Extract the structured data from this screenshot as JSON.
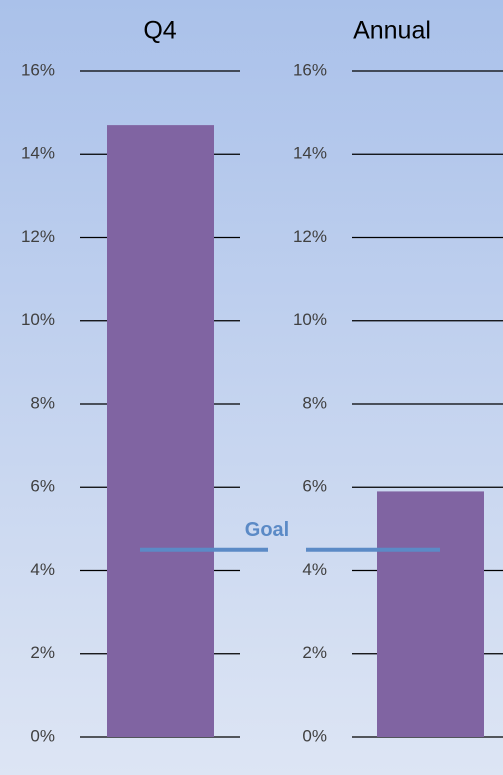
{
  "chart_data": [
    {
      "type": "bar",
      "title": "Q4",
      "values": [
        14.7
      ],
      "color": "#8064a2",
      "ylim": [
        0,
        16
      ],
      "yticks": [
        {
          "value": 0,
          "label": "0%"
        },
        {
          "value": 2,
          "label": "2%"
        },
        {
          "value": 4,
          "label": "4%"
        },
        {
          "value": 6,
          "label": "6%"
        },
        {
          "value": 8,
          "label": "8%"
        },
        {
          "value": 10,
          "label": "10%"
        },
        {
          "value": 12,
          "label": "12%"
        },
        {
          "value": 14,
          "label": "14%"
        },
        {
          "value": 16,
          "label": "16%"
        }
      ],
      "grid": true
    },
    {
      "type": "bar",
      "title": "Annual",
      "values": [
        5.9
      ],
      "color": "#8064a2",
      "ylim": [
        0,
        16
      ],
      "yticks": [
        {
          "value": 0,
          "label": "0%"
        },
        {
          "value": 2,
          "label": "2%"
        },
        {
          "value": 4,
          "label": "4%"
        },
        {
          "value": 6,
          "label": "6%"
        },
        {
          "value": 8,
          "label": "8%"
        },
        {
          "value": 10,
          "label": "10%"
        },
        {
          "value": 12,
          "label": "12%"
        },
        {
          "value": 14,
          "label": "14%"
        },
        {
          "value": 16,
          "label": "16%"
        }
      ],
      "grid": true
    }
  ],
  "goal": {
    "label": "Goal",
    "value": 4.5,
    "color": "#5b8ac6"
  }
}
